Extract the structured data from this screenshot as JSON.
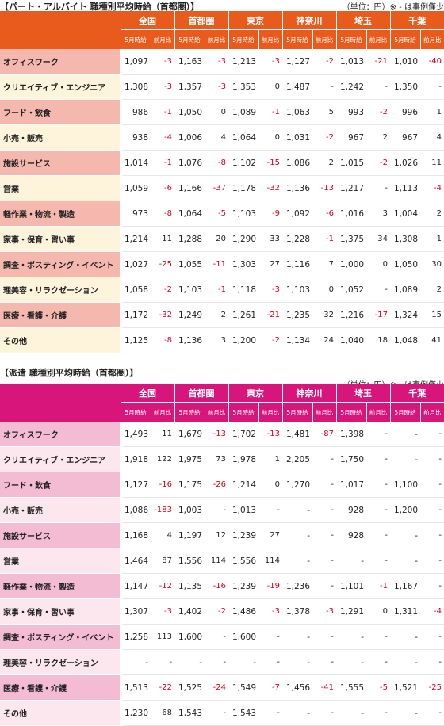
{
  "tables": [
    {
      "title": "【パート・アルバイト 職種別平均時給（首都圏）】",
      "unit": "（単位：円）※ - は事例僅少",
      "regions": [
        "全国",
        "首都圏",
        "東京",
        "神奈川",
        "埼玉",
        "千葉"
      ],
      "subheaders": [
        "5月時給",
        "前月比"
      ],
      "rows": [
        {
          "label": "オフィスワーク",
          "cells": [
            "1,097",
            "-3",
            "1,163",
            "-3",
            "1,213",
            "-3",
            "1,127",
            "-2",
            "1,013",
            "-21",
            "1,010",
            "-40"
          ]
        },
        {
          "label": "クリエイティブ・エンジニア",
          "cells": [
            "1,308",
            "-3",
            "1,357",
            "-3",
            "1,353",
            "0",
            "1,487",
            "-",
            "1,242",
            "-",
            "1,350",
            "-"
          ]
        },
        {
          "label": "フード・飲食",
          "cells": [
            "986",
            "-1",
            "1,050",
            "0",
            "1,089",
            "-1",
            "1,063",
            "5",
            "993",
            "-2",
            "996",
            "1"
          ]
        },
        {
          "label": "小売・販売",
          "cells": [
            "938",
            "-4",
            "1,006",
            "4",
            "1,064",
            "0",
            "1,031",
            "-2",
            "967",
            "2",
            "967",
            "4"
          ]
        },
        {
          "label": "施設サービス",
          "cells": [
            "1,014",
            "-1",
            "1,076",
            "-8",
            "1,102",
            "-15",
            "1,086",
            "2",
            "1,015",
            "-2",
            "1,026",
            "11"
          ]
        },
        {
          "label": "営業",
          "cells": [
            "1,059",
            "-6",
            "1,166",
            "-37",
            "1,178",
            "-32",
            "1,136",
            "-13",
            "1,217",
            "-",
            "1,113",
            "-4"
          ]
        },
        {
          "label": "軽作業・物流・製造",
          "cells": [
            "973",
            "-8",
            "1,064",
            "-5",
            "1,103",
            "-9",
            "1,092",
            "-6",
            "1,016",
            "3",
            "1,004",
            "2"
          ]
        },
        {
          "label": "家事・保育・習い事",
          "cells": [
            "1,214",
            "11",
            "1,288",
            "20",
            "1,290",
            "33",
            "1,228",
            "-1",
            "1,375",
            "34",
            "1,308",
            "1"
          ]
        },
        {
          "label": "調査・ポスティング・イベント",
          "cells": [
            "1,027",
            "-25",
            "1,055",
            "-11",
            "1,303",
            "27",
            "1,116",
            "7",
            "1,000",
            "0",
            "1,050",
            "30"
          ]
        },
        {
          "label": "理美容・リラクゼーション",
          "cells": [
            "1,058",
            "-2",
            "1,103",
            "-1",
            "1,118",
            "-3",
            "1,103",
            "0",
            "1,052",
            "-",
            "1,089",
            "2"
          ]
        },
        {
          "label": "医療・看護・介護",
          "cells": [
            "1,172",
            "-32",
            "1,249",
            "2",
            "1,261",
            "-21",
            "1,235",
            "32",
            "1,216",
            "-17",
            "1,324",
            "15"
          ]
        },
        {
          "label": "その他",
          "cells": [
            "1,125",
            "-8",
            "1,136",
            "3",
            "1,200",
            "-2",
            "1,134",
            "24",
            "1,040",
            "18",
            "1,048",
            "41"
          ]
        }
      ]
    },
    {
      "title": "【派遣 職種別平均時給（首都圏）】",
      "unit": "（単位：円）※ - は事例僅少",
      "regions": [
        "全国",
        "首都圏",
        "東京",
        "神奈川",
        "埼玉",
        "千葉"
      ],
      "subheaders": [
        "5月時給",
        "前月比"
      ],
      "rows": [
        {
          "label": "オフィスワーク",
          "cells": [
            "1,493",
            "11",
            "1,679",
            "-13",
            "1,702",
            "-13",
            "1,481",
            "-87",
            "1,398",
            "-",
            "-",
            "-"
          ]
        },
        {
          "label": "クリエイティブ・エンジニア",
          "cells": [
            "1,918",
            "122",
            "1,975",
            "73",
            "1,978",
            "1",
            "2,205",
            "-",
            "1,750",
            "-",
            "-",
            "-"
          ]
        },
        {
          "label": "フード・飲食",
          "cells": [
            "1,127",
            "-16",
            "1,175",
            "-26",
            "1,214",
            "0",
            "1,270",
            "-",
            "1,017",
            "-",
            "1,100",
            "-"
          ]
        },
        {
          "label": "小売・販売",
          "cells": [
            "1,086",
            "-183",
            "1,003",
            "-",
            "1,013",
            "-",
            "-",
            "-",
            "928",
            "-",
            "1,200",
            "-"
          ]
        },
        {
          "label": "施設サービス",
          "cells": [
            "1,168",
            "4",
            "1,197",
            "12",
            "1,239",
            "27",
            "-",
            "-",
            "928",
            "-",
            "-",
            "-"
          ]
        },
        {
          "label": "営業",
          "cells": [
            "1,464",
            "87",
            "1,556",
            "114",
            "1,556",
            "114",
            "-",
            "-",
            "-",
            "-",
            "-",
            "-"
          ]
        },
        {
          "label": "軽作業・物流・製造",
          "cells": [
            "1,147",
            "-12",
            "1,135",
            "-16",
            "1,239",
            "-19",
            "1,236",
            "-",
            "1,101",
            "-1",
            "1,167",
            "-"
          ]
        },
        {
          "label": "家事・保育・習い事",
          "cells": [
            "1,307",
            "-3",
            "1,402",
            "-2",
            "1,486",
            "-3",
            "1,378",
            "-3",
            "1,291",
            "0",
            "1,311",
            "-4"
          ]
        },
        {
          "label": "調査・ポスティング・イベント",
          "cells": [
            "1,258",
            "113",
            "1,600",
            "-",
            "1,600",
            "-",
            "-",
            "-",
            "-",
            "-",
            "-",
            "-"
          ]
        },
        {
          "label": "理美容・リラクゼーション",
          "cells": [
            "-",
            "-",
            "-",
            "-",
            "-",
            "-",
            "-",
            "-",
            "-",
            "-",
            "-",
            "-"
          ]
        },
        {
          "label": "医療・看護・介護",
          "cells": [
            "1,513",
            "-22",
            "1,525",
            "-24",
            "1,549",
            "-7",
            "1,456",
            "-41",
            "1,555",
            "-5",
            "1,521",
            "-25"
          ]
        },
        {
          "label": "その他",
          "cells": [
            "1,230",
            "68",
            "1,543",
            "-",
            "1,543",
            "-",
            "-",
            "-",
            "-",
            "-",
            "-",
            "-"
          ]
        }
      ]
    }
  ]
}
